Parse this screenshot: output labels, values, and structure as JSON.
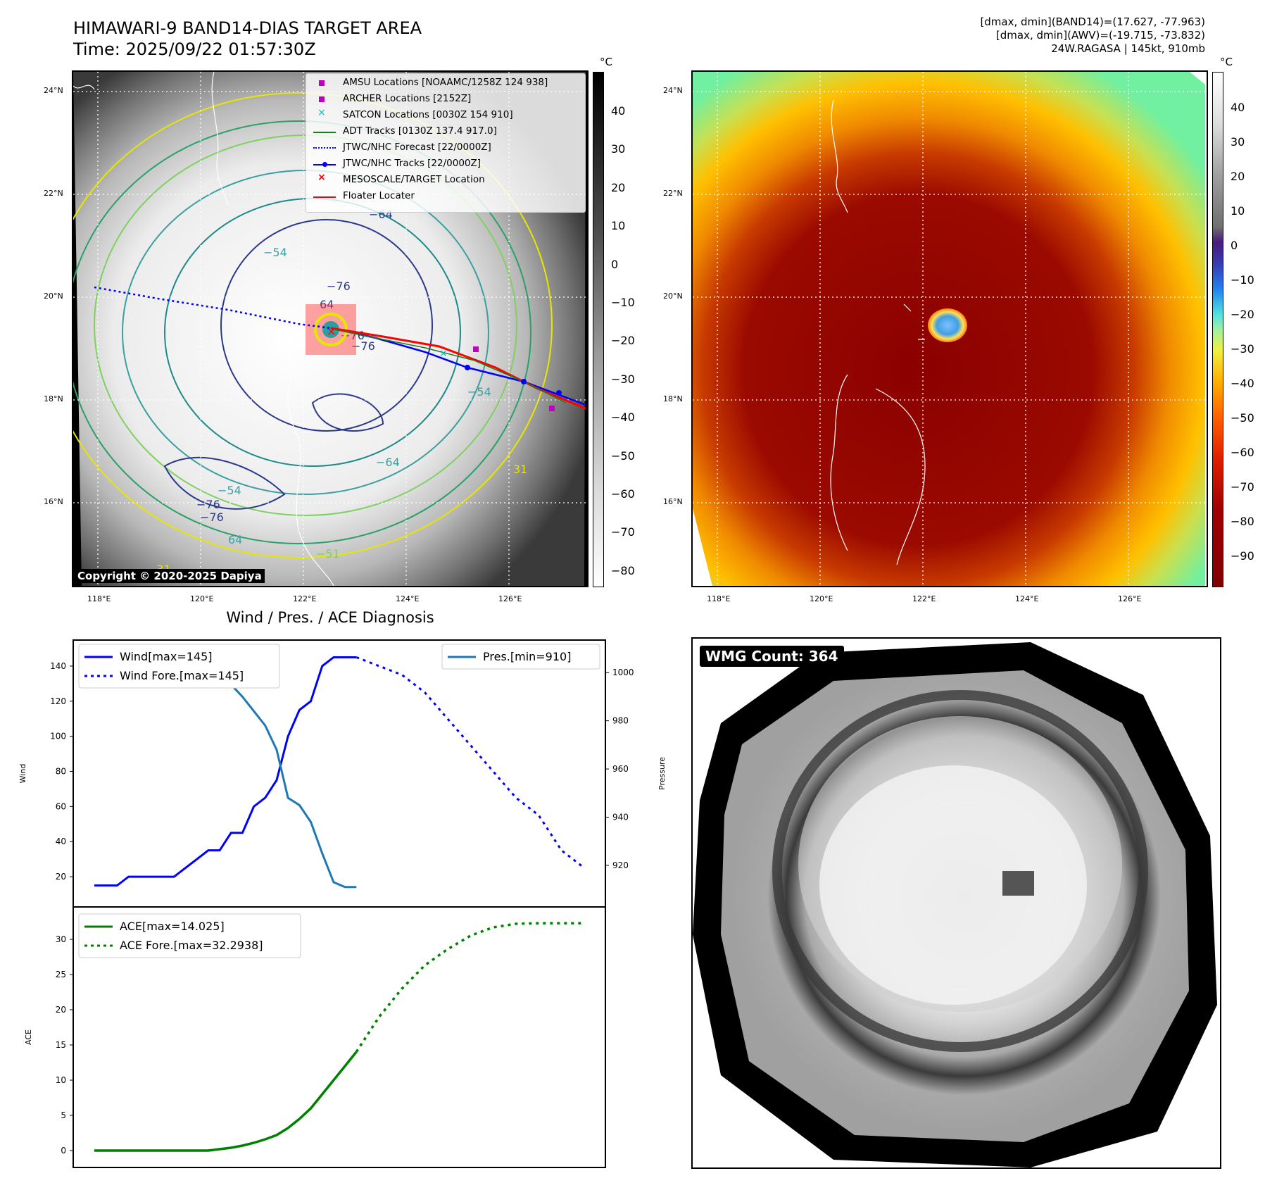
{
  "map_left": {
    "title_line1": "HIMAWARI-9 BAND14-DIAS TARGET AREA",
    "title_line2": "Time: 2025/09/22 01:57:30Z",
    "copyright": "Copyright © 2020-2025 Dapiya",
    "colorbar_unit": "°C",
    "colorbar_ticks": [
      "40",
      "30",
      "20",
      "10",
      "0",
      "−10",
      "−20",
      "−30",
      "−40",
      "−50",
      "−60",
      "−70",
      "−80"
    ],
    "lat_labels": [
      "24°N",
      "22°N",
      "20°N",
      "18°N",
      "16°N"
    ],
    "lon_labels": [
      "118°E",
      "120°E",
      "122°E",
      "124°E",
      "126°E"
    ],
    "contour_labels": [
      "−64",
      "−54",
      "−76",
      "64",
      "−76",
      "−76",
      "−54",
      "−64",
      "−54",
      "64",
      "−76",
      "−76",
      "−31",
      "31",
      "−51"
    ],
    "legend": [
      {
        "label": "AMSU Locations [NOAAMC/1258Z 124 938]",
        "color": "#c000c0",
        "marker": "square"
      },
      {
        "label": "ARCHER Locations [2152Z]",
        "color": "#c000c0",
        "marker": "square"
      },
      {
        "label": "SATCON Locations [0030Z 154 910]",
        "color": "#00c0c0",
        "marker": "x"
      },
      {
        "label": "ADT Tracks [0130Z 137.4 917.0]",
        "color": "#1a7f1a",
        "marker": "line"
      },
      {
        "label": "JTWC/NHC Forecast [22/0000Z]",
        "color": "#0000ff",
        "marker": "dotted"
      },
      {
        "label": "JTWC/NHC Tracks [22/0000Z]",
        "color": "#0000ff",
        "marker": "line-dot"
      },
      {
        "label": "MESOSCALE/TARGET Location",
        "color": "#ff0000",
        "marker": "x"
      },
      {
        "label": "Floater Locater",
        "color": "#ff0000",
        "marker": "line"
      }
    ]
  },
  "map_right": {
    "header_line1": "[dmax, dmin](BAND14)=(17.627, -77.963)",
    "header_line2": "[dmax, dmin](AWV)=(-19.715, -73.832)",
    "header_line3": "24W.RAGASA | 145kt, 910mb",
    "colorbar_unit": "°C",
    "colorbar_ticks": [
      "40",
      "30",
      "20",
      "10",
      "0",
      "−10",
      "−20",
      "−30",
      "−40",
      "−50",
      "−60",
      "−70",
      "−80",
      "−90"
    ],
    "lat_labels": [
      "24°N",
      "22°N",
      "20°N",
      "18°N",
      "16°N"
    ],
    "lon_labels": [
      "118°E",
      "120°E",
      "122°E",
      "124°E",
      "126°E"
    ]
  },
  "wmg": {
    "label": "WMG Count: 364"
  },
  "chart_data": [
    {
      "type": "line",
      "title": "Wind / Pres. / ACE Diagnosis",
      "ylabel": "Wind",
      "y2label": "Pressure",
      "ylim": [
        10,
        150
      ],
      "y2lim": [
        908,
        1010
      ],
      "yticks": [
        20,
        40,
        60,
        80,
        100,
        120,
        140
      ],
      "y2ticks": [
        920,
        940,
        960,
        980,
        1000
      ],
      "x_index_range": [
        0,
        43
      ],
      "series": [
        {
          "name": "Wind[max=145]",
          "axis": "left",
          "color": "#0000ff",
          "style": "solid",
          "x": [
            0,
            2,
            3,
            4,
            5,
            6,
            7,
            8,
            9,
            10,
            11,
            12,
            13,
            14,
            15,
            16,
            17,
            18,
            19,
            20,
            21,
            22,
            23
          ],
          "values": [
            15,
            15,
            20,
            20,
            20,
            20,
            20,
            25,
            30,
            35,
            35,
            45,
            45,
            60,
            65,
            75,
            100,
            115,
            120,
            140,
            145,
            145,
            145
          ]
        },
        {
          "name": "Wind Fore.[max=145]",
          "axis": "left",
          "color": "#0000ff",
          "style": "dotted",
          "x": [
            23,
            25,
            27,
            29,
            31,
            33,
            35,
            37,
            39,
            41,
            43
          ],
          "values": [
            145,
            140,
            135,
            125,
            110,
            95,
            80,
            65,
            55,
            35,
            25
          ]
        },
        {
          "name": "Pres.[min=910]",
          "axis": "right",
          "color": "#1f77b4",
          "style": "solid",
          "x": [
            2,
            3,
            4,
            5,
            6,
            7,
            8,
            9,
            10,
            11,
            12,
            13,
            14,
            15,
            16,
            17,
            18,
            19,
            20,
            21,
            22,
            23
          ],
          "values": [
            1009,
            1007,
            1006,
            1005,
            1005,
            1004,
            1003,
            1002,
            1000,
            998,
            995,
            990,
            984,
            978,
            968,
            948,
            945,
            938,
            925,
            913,
            911,
            911
          ]
        }
      ],
      "legend_left": [
        "Wind[max=145]",
        "Wind Fore.[max=145]"
      ],
      "legend_right": [
        "Pres.[min=910]"
      ]
    },
    {
      "type": "line",
      "ylabel": "ACE",
      "ylim": [
        -1,
        33
      ],
      "yticks": [
        0,
        5,
        10,
        15,
        20,
        25,
        30
      ],
      "series": [
        {
          "name": "ACE[max=14.025]",
          "color": "#008000",
          "style": "solid",
          "x": [
            0,
            2,
            4,
            6,
            8,
            10,
            11,
            12,
            13,
            14,
            15,
            16,
            17,
            18,
            19,
            20,
            21,
            22,
            23
          ],
          "values": [
            0,
            0,
            0,
            0,
            0,
            0,
            0.2,
            0.4,
            0.7,
            1.1,
            1.6,
            2.2,
            3.2,
            4.5,
            6,
            8,
            10,
            12,
            14.025
          ]
        },
        {
          "name": "ACE Fore.[max=32.2938]",
          "color": "#008000",
          "style": "dotted",
          "x": [
            23,
            25,
            27,
            29,
            31,
            33,
            35,
            37,
            39,
            41,
            43
          ],
          "values": [
            14.025,
            19,
            23,
            26.3,
            28.6,
            30.5,
            31.7,
            32.2,
            32.29,
            32.29,
            32.29
          ]
        }
      ],
      "legend": [
        "ACE[max=14.025]",
        "ACE Fore.[max=32.2938]"
      ]
    }
  ]
}
